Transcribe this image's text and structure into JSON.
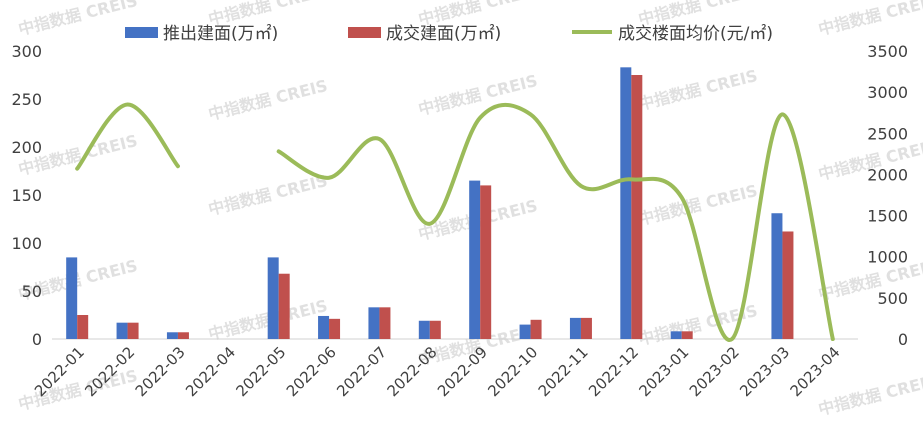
{
  "chart_data": {
    "type": "bar+line",
    "title": "",
    "categories": [
      "2022-01",
      "2022-02",
      "2022-03",
      "2022-04",
      "2022-05",
      "2022-06",
      "2022-07",
      "2022-08",
      "2022-09",
      "2022-10",
      "2022-11",
      "2022-12",
      "2023-01",
      "2023-02",
      "2023-03",
      "2023-04"
    ],
    "series": [
      {
        "name": "推出建面(万㎡)",
        "type": "bar",
        "axis": "left",
        "color": "#4472C4",
        "values": [
          85,
          17,
          7,
          null,
          85,
          24,
          33,
          19,
          165,
          15,
          22,
          283,
          8,
          null,
          131,
          null
        ]
      },
      {
        "name": "成交建面(万㎡)",
        "type": "bar",
        "axis": "left",
        "color": "#C0504D",
        "values": [
          25,
          17,
          7,
          null,
          68,
          21,
          33,
          19,
          160,
          20,
          22,
          275,
          8,
          null,
          112,
          null
        ]
      },
      {
        "name": "成交楼面均价(元/㎡)",
        "type": "line",
        "axis": "right",
        "color": "#9BBB59",
        "values": [
          2070,
          2850,
          2100,
          null,
          2280,
          1960,
          2430,
          1400,
          2690,
          2730,
          1860,
          1940,
          1720,
          0,
          2730,
          0
        ]
      }
    ],
    "y_left": {
      "min": 0,
      "max": 300,
      "ticks": [
        0,
        50,
        100,
        150,
        200,
        250,
        300
      ]
    },
    "y_right": {
      "min": 0,
      "max": 3500,
      "ticks": [
        0,
        500,
        1000,
        1500,
        2000,
        2500,
        3000,
        3500
      ]
    },
    "legend_position": "top",
    "grid": false,
    "watermark": "中指数据 CREIS"
  }
}
